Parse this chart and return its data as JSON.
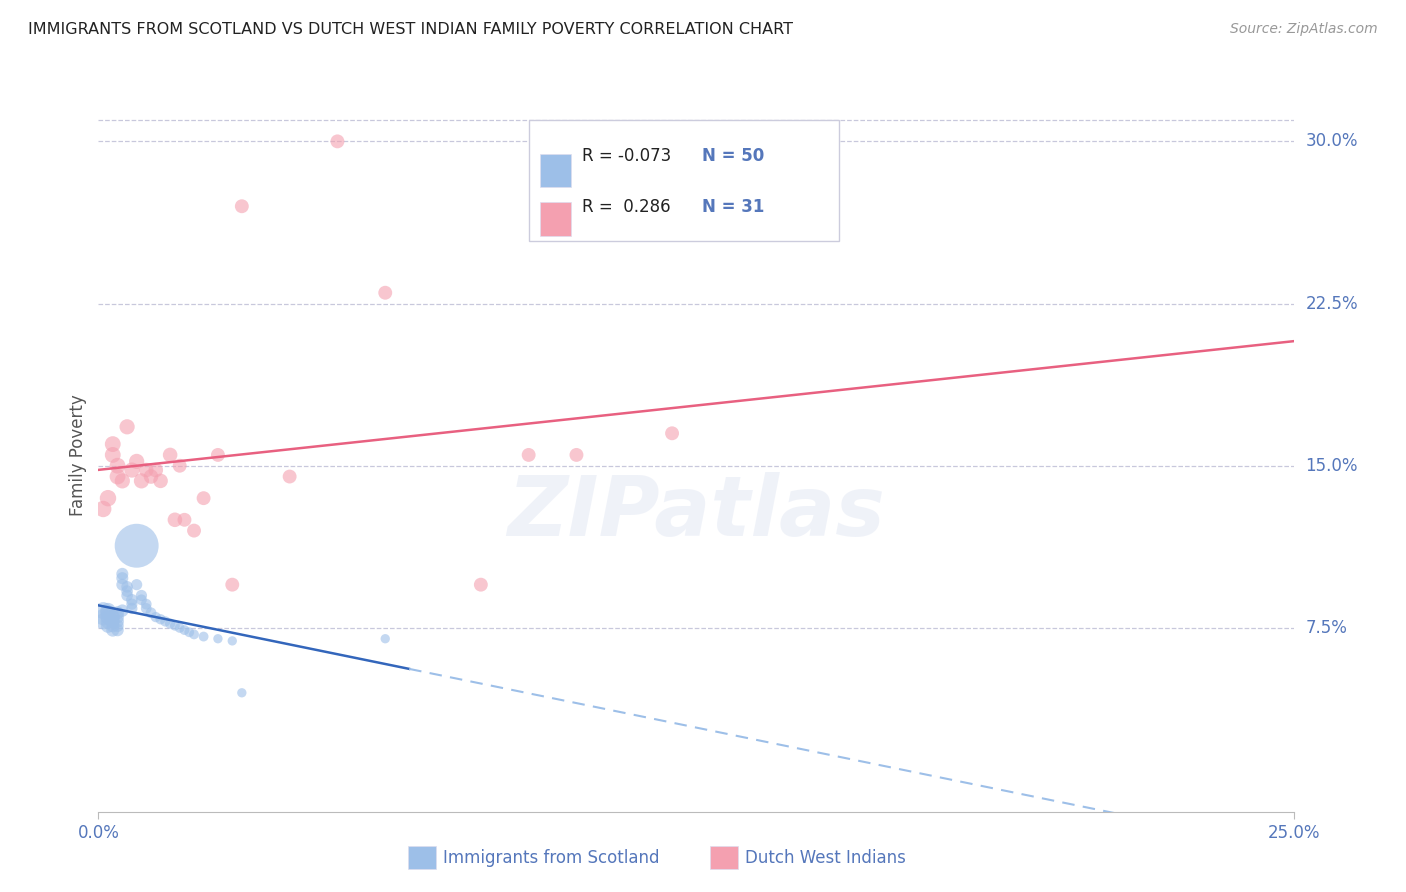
{
  "title": "IMMIGRANTS FROM SCOTLAND VS DUTCH WEST INDIAN FAMILY POVERTY CORRELATION CHART",
  "source": "Source: ZipAtlas.com",
  "ylabel": "Family Poverty",
  "watermark": "ZIPatlas",
  "xlim": [
    0.0,
    0.25
  ],
  "ylim": [
    -0.01,
    0.32
  ],
  "yticks": [
    0.075,
    0.15,
    0.225,
    0.3
  ],
  "ytick_labels": [
    "7.5%",
    "15.0%",
    "22.5%",
    "30.0%"
  ],
  "xtick_labels": [
    "0.0%",
    "25.0%"
  ],
  "xtick_positions": [
    0.0,
    0.25
  ],
  "blue_color": "#9DBFE8",
  "pink_color": "#F4A0B0",
  "blue_line_color": "#3366BB",
  "pink_line_color": "#E86080",
  "grid_color": "#C8C8DC",
  "axis_label_color": "#5577BB",
  "title_color": "#222222",
  "scotland_x": [
    0.001,
    0.001,
    0.001,
    0.002,
    0.002,
    0.002,
    0.002,
    0.002,
    0.003,
    0.003,
    0.003,
    0.003,
    0.003,
    0.003,
    0.004,
    0.004,
    0.004,
    0.004,
    0.004,
    0.005,
    0.005,
    0.005,
    0.005,
    0.006,
    0.006,
    0.006,
    0.007,
    0.007,
    0.007,
    0.008,
    0.008,
    0.009,
    0.009,
    0.01,
    0.01,
    0.011,
    0.012,
    0.013,
    0.014,
    0.015,
    0.016,
    0.017,
    0.018,
    0.019,
    0.02,
    0.022,
    0.025,
    0.028,
    0.03,
    0.06
  ],
  "scotland_y": [
    0.083,
    0.08,
    0.078,
    0.083,
    0.082,
    0.08,
    0.078,
    0.076,
    0.08,
    0.08,
    0.078,
    0.078,
    0.076,
    0.074,
    0.082,
    0.08,
    0.078,
    0.076,
    0.074,
    0.083,
    0.095,
    0.1,
    0.098,
    0.094,
    0.092,
    0.09,
    0.088,
    0.086,
    0.084,
    0.113,
    0.095,
    0.09,
    0.088,
    0.086,
    0.084,
    0.082,
    0.08,
    0.079,
    0.078,
    0.077,
    0.076,
    0.075,
    0.074,
    0.073,
    0.072,
    0.071,
    0.07,
    0.069,
    0.045,
    0.07
  ],
  "scotland_sizes": [
    30,
    28,
    26,
    25,
    24,
    23,
    22,
    21,
    20,
    20,
    19,
    19,
    18,
    18,
    18,
    17,
    17,
    16,
    16,
    16,
    15,
    15,
    15,
    14,
    14,
    14,
    14,
    13,
    13,
    200,
    13,
    13,
    12,
    12,
    12,
    12,
    11,
    11,
    11,
    11,
    10,
    10,
    10,
    10,
    10,
    10,
    9,
    9,
    9,
    9
  ],
  "dutch_x": [
    0.001,
    0.002,
    0.003,
    0.003,
    0.004,
    0.004,
    0.005,
    0.006,
    0.007,
    0.008,
    0.009,
    0.01,
    0.011,
    0.012,
    0.013,
    0.015,
    0.016,
    0.017,
    0.018,
    0.02,
    0.022,
    0.025,
    0.028,
    0.03,
    0.04,
    0.05,
    0.06,
    0.08,
    0.09,
    0.1,
    0.12
  ],
  "dutch_y": [
    0.13,
    0.135,
    0.16,
    0.155,
    0.15,
    0.145,
    0.143,
    0.168,
    0.148,
    0.152,
    0.143,
    0.148,
    0.145,
    0.148,
    0.143,
    0.155,
    0.125,
    0.15,
    0.125,
    0.12,
    0.135,
    0.155,
    0.095,
    0.27,
    0.145,
    0.3,
    0.23,
    0.095,
    0.155,
    0.155,
    0.165
  ],
  "dutch_sizes": [
    14,
    14,
    13,
    13,
    13,
    13,
    12,
    12,
    12,
    12,
    12,
    11,
    11,
    11,
    11,
    11,
    11,
    10,
    10,
    10,
    10,
    10,
    10,
    10,
    10,
    10,
    10,
    10,
    10,
    10,
    10
  ]
}
